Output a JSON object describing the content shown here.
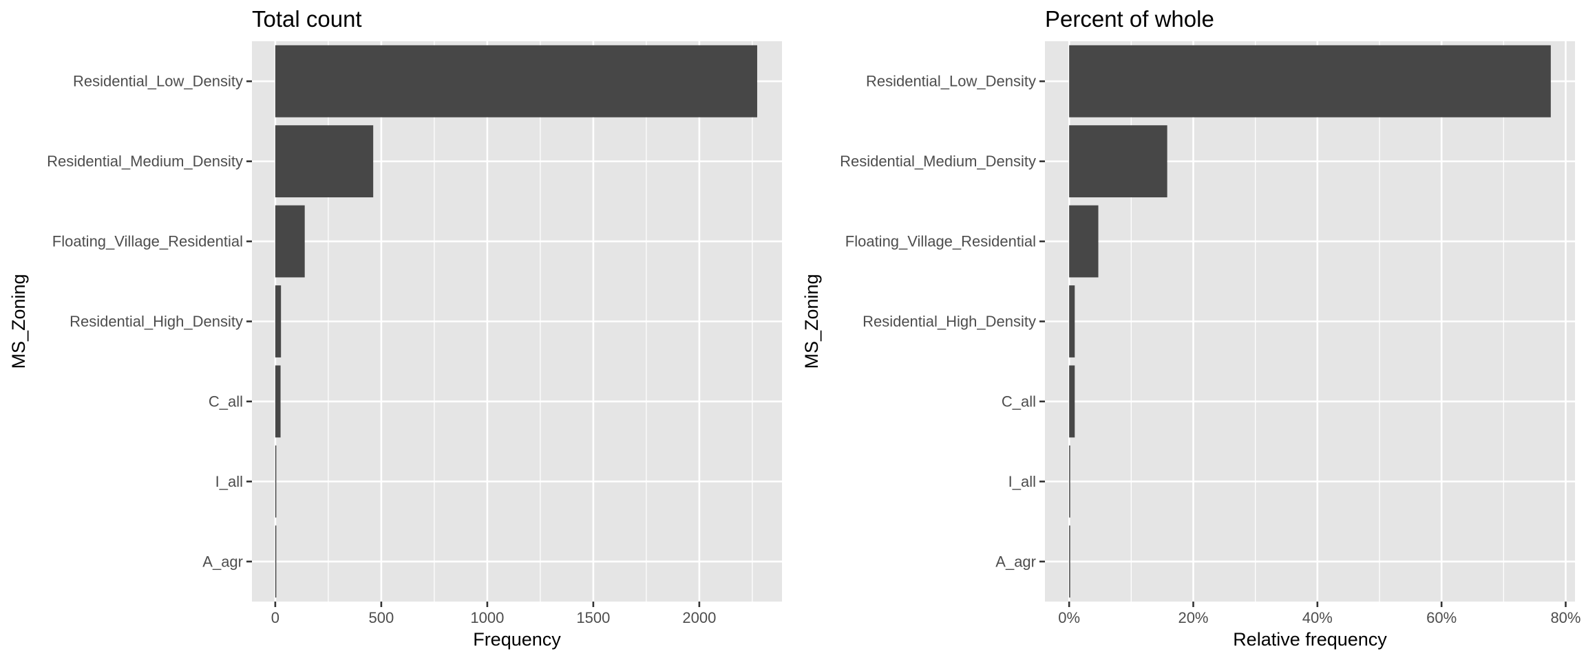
{
  "chart_data": [
    {
      "type": "bar",
      "orientation": "horizontal",
      "title": "Total count",
      "xlabel": "Frequency",
      "ylabel": "MS_Zoning",
      "categories": [
        "Residential_Low_Density",
        "Residential_Medium_Density",
        "Floating_Village_Residential",
        "Residential_High_Density",
        "C_all",
        "I_all",
        "A_agr"
      ],
      "values": [
        2273,
        462,
        139,
        27,
        25,
        2,
        2
      ],
      "xlim": [
        -110,
        2390
      ],
      "xticks": [
        0,
        500,
        1000,
        1500,
        2000
      ],
      "xtick_labels": [
        "0",
        "500",
        "1000",
        "1500",
        "2000"
      ],
      "grid": true
    },
    {
      "type": "bar",
      "orientation": "horizontal",
      "title": "Percent of whole",
      "xlabel": "Relative frequency",
      "ylabel": "MS_Zoning",
      "categories": [
        "Residential_Low_Density",
        "Residential_Medium_Density",
        "Floating_Village_Residential",
        "Residential_High_Density",
        "C_all",
        "I_all",
        "A_agr"
      ],
      "values": [
        77.6,
        15.8,
        4.7,
        0.9,
        0.9,
        0.07,
        0.07
      ],
      "xlim": [
        -3.9,
        81.5
      ],
      "xticks": [
        0,
        20,
        40,
        60,
        80
      ],
      "xtick_labels": [
        "0%",
        "20%",
        "40%",
        "60%",
        "80%"
      ],
      "grid": true
    }
  ]
}
